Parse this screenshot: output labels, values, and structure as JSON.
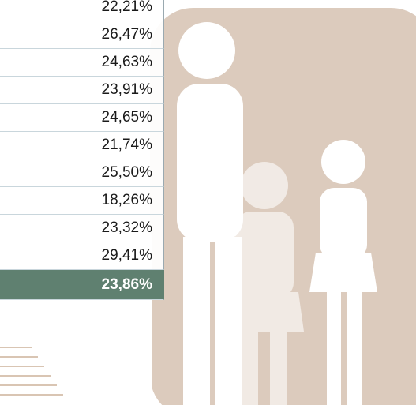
{
  "table": {
    "rows": [
      "22,21%",
      "26,47%",
      "24,63%",
      "23,91%",
      "24,65%",
      "21,74%",
      "25,50%",
      "18,26%",
      "23,32%",
      "29,41%"
    ],
    "total": "23,86%"
  }
}
